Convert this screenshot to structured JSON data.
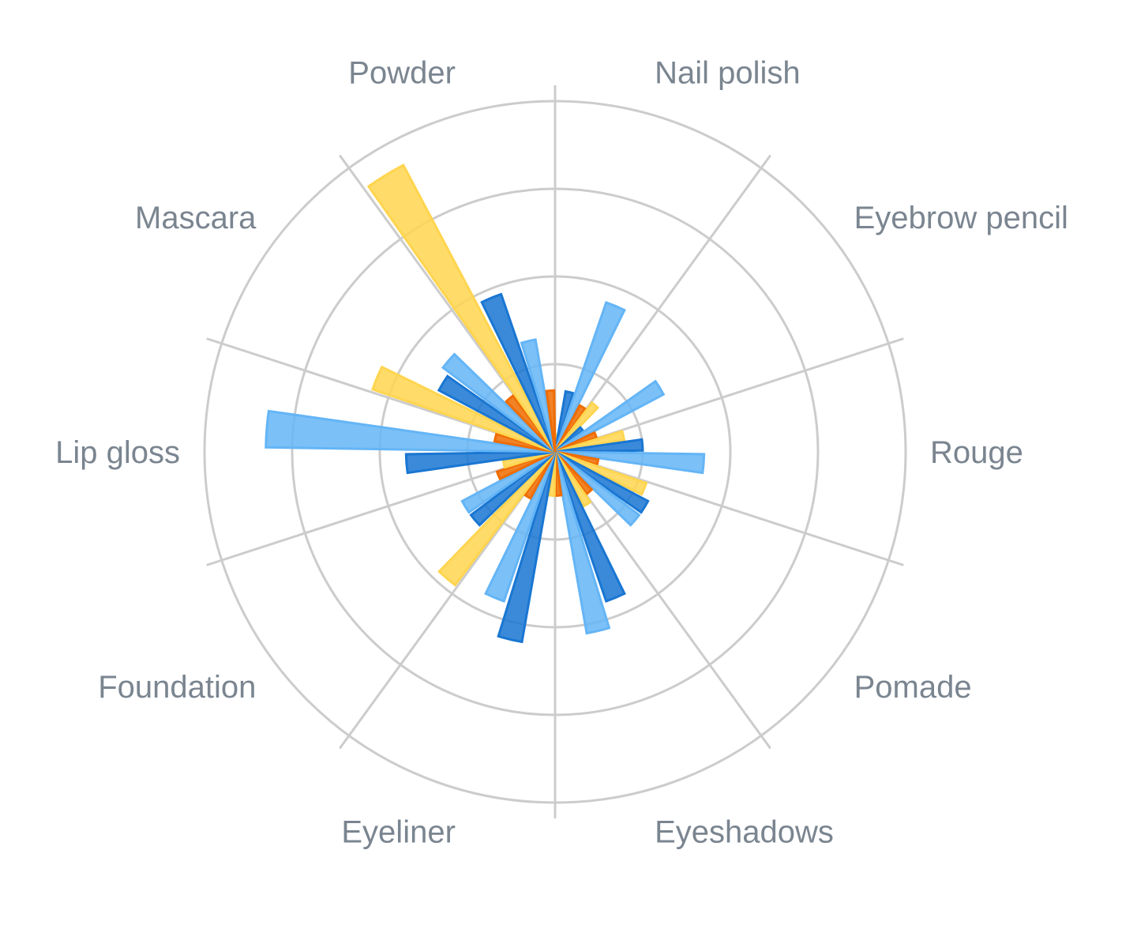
{
  "chart_data": {
    "type": "polar-bar",
    "title": "",
    "categories": [
      "Nail polish",
      "Eyebrow pencil",
      "Rouge",
      "Pomade",
      "Eyeshadows",
      "Eyeliner",
      "Foundation",
      "Lip gloss",
      "Mascara",
      "Powder"
    ],
    "series": [
      {
        "color": "#ffd54f",
        "values": [
          2,
          7,
          8,
          11,
          7,
          5,
          19,
          6,
          22,
          37
        ]
      },
      {
        "color": "#1976d2",
        "values": [
          7,
          4,
          10,
          12,
          18,
          22,
          12,
          17,
          15,
          19
        ]
      },
      {
        "color": "#64b5f6",
        "values": [
          18,
          14,
          17,
          12,
          21,
          18,
          12,
          33,
          16,
          13
        ]
      },
      {
        "color": "#ef6c00",
        "values": [
          6,
          5,
          5,
          6,
          5,
          6,
          7,
          7,
          8,
          7
        ]
      }
    ],
    "rlim": [
      0,
      40
    ],
    "grid_step": 10,
    "grid": true,
    "legend": "none"
  }
}
